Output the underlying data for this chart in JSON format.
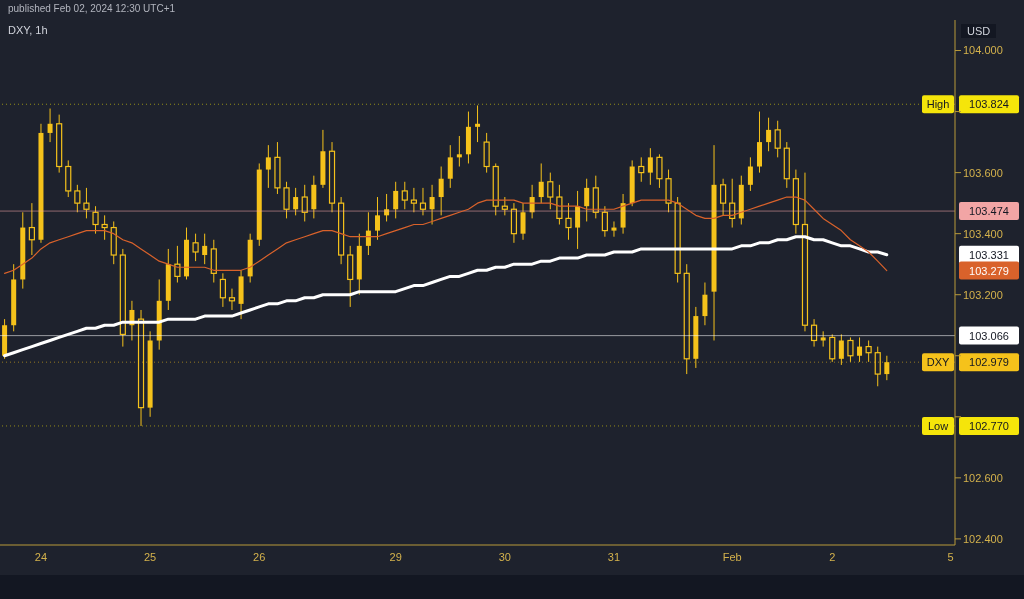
{
  "chart_data": {
    "type": "candlestick",
    "title": "DXY, 1h",
    "subtitle": "published Feb 02, 2024 12:30 UTC+1",
    "ylabel": "USD",
    "categories": [
      null,
      null,
      null,
      null,
      "24",
      null,
      null,
      null,
      null,
      null,
      null,
      null,
      null,
      null,
      null,
      null,
      "25",
      null,
      null,
      null,
      null,
      null,
      null,
      null,
      null,
      null,
      null,
      null,
      "26",
      null,
      null,
      null,
      null,
      null,
      null,
      null,
      null,
      null,
      null,
      null,
      null,
      null,
      null,
      "29",
      null,
      null,
      null,
      null,
      null,
      null,
      null,
      null,
      null,
      null,
      null,
      "30",
      null,
      null,
      null,
      null,
      null,
      null,
      null,
      null,
      null,
      null,
      null,
      "31",
      null,
      null,
      null,
      null,
      null,
      null,
      null,
      null,
      null,
      null,
      null,
      null,
      "Feb",
      null,
      null,
      null,
      null,
      null,
      null,
      null,
      null,
      null,
      null,
      "2",
      null,
      null,
      null,
      null,
      null,
      null,
      null,
      null,
      null,
      null,
      null,
      null,
      "5"
    ],
    "color": "#f5c21b",
    "ohlc": [
      [
        103.0,
        103.12,
        102.99,
        103.1
      ],
      [
        103.1,
        103.3,
        103.08,
        103.25
      ],
      [
        103.25,
        103.47,
        103.22,
        103.42
      ],
      [
        103.42,
        103.5,
        103.33,
        103.38
      ],
      [
        103.38,
        103.76,
        103.37,
        103.73
      ],
      [
        103.73,
        103.81,
        103.7,
        103.76
      ],
      [
        103.76,
        103.79,
        103.6,
        103.62
      ],
      [
        103.62,
        103.64,
        103.52,
        103.54
      ],
      [
        103.54,
        103.56,
        103.47,
        103.5
      ],
      [
        103.5,
        103.55,
        103.45,
        103.48
      ],
      [
        103.47,
        103.49,
        103.4,
        103.43
      ],
      [
        103.43,
        103.46,
        103.38,
        103.42
      ],
      [
        103.42,
        103.44,
        103.3,
        103.33
      ],
      [
        103.33,
        103.35,
        103.03,
        103.07
      ],
      [
        103.1,
        103.18,
        103.05,
        103.15
      ],
      [
        103.12,
        103.15,
        102.77,
        102.83
      ],
      [
        102.83,
        103.08,
        102.8,
        103.05
      ],
      [
        103.05,
        103.25,
        103.02,
        103.18
      ],
      [
        103.18,
        103.35,
        103.15,
        103.3
      ],
      [
        103.3,
        103.36,
        103.24,
        103.26
      ],
      [
        103.26,
        103.42,
        103.25,
        103.38
      ],
      [
        103.37,
        103.4,
        103.31,
        103.34
      ],
      [
        103.33,
        103.4,
        103.3,
        103.36
      ],
      [
        103.35,
        103.38,
        103.24,
        103.27
      ],
      [
        103.25,
        103.27,
        103.16,
        103.19
      ],
      [
        103.19,
        103.22,
        103.15,
        103.18
      ],
      [
        103.17,
        103.28,
        103.12,
        103.26
      ],
      [
        103.26,
        103.4,
        103.24,
        103.38
      ],
      [
        103.38,
        103.63,
        103.36,
        103.61
      ],
      [
        103.61,
        103.69,
        103.55,
        103.65
      ],
      [
        103.65,
        103.7,
        103.53,
        103.55
      ],
      [
        103.55,
        103.57,
        103.45,
        103.48
      ],
      [
        103.48,
        103.55,
        103.46,
        103.52
      ],
      [
        103.52,
        103.56,
        103.44,
        103.47
      ],
      [
        103.48,
        103.59,
        103.45,
        103.56
      ],
      [
        103.56,
        103.74,
        103.55,
        103.67
      ],
      [
        103.67,
        103.7,
        103.47,
        103.5
      ],
      [
        103.5,
        103.52,
        103.3,
        103.33
      ],
      [
        103.33,
        103.36,
        103.16,
        103.25
      ],
      [
        103.25,
        103.4,
        103.2,
        103.36
      ],
      [
        103.36,
        103.47,
        103.33,
        103.41
      ],
      [
        103.41,
        103.52,
        103.38,
        103.46
      ],
      [
        103.46,
        103.53,
        103.44,
        103.48
      ],
      [
        103.48,
        103.57,
        103.45,
        103.54
      ],
      [
        103.54,
        103.57,
        103.48,
        103.51
      ],
      [
        103.51,
        103.55,
        103.47,
        103.5
      ],
      [
        103.5,
        103.55,
        103.46,
        103.48
      ],
      [
        103.48,
        103.56,
        103.43,
        103.52
      ],
      [
        103.52,
        103.62,
        103.46,
        103.58
      ],
      [
        103.58,
        103.69,
        103.55,
        103.65
      ],
      [
        103.65,
        103.72,
        103.62,
        103.66
      ],
      [
        103.66,
        103.8,
        103.63,
        103.75
      ],
      [
        103.75,
        103.82,
        103.7,
        103.76
      ],
      [
        103.7,
        103.73,
        103.6,
        103.62
      ],
      [
        103.62,
        103.63,
        103.46,
        103.49
      ],
      [
        103.49,
        103.52,
        103.46,
        103.48
      ],
      [
        103.48,
        103.5,
        103.37,
        103.4
      ],
      [
        103.4,
        103.5,
        103.38,
        103.47
      ],
      [
        103.47,
        103.56,
        103.45,
        103.52
      ],
      [
        103.52,
        103.63,
        103.5,
        103.57
      ],
      [
        103.57,
        103.6,
        103.48,
        103.52
      ],
      [
        103.52,
        103.56,
        103.43,
        103.45
      ],
      [
        103.45,
        103.5,
        103.38,
        103.42
      ],
      [
        103.42,
        103.54,
        103.35,
        103.49
      ],
      [
        103.49,
        103.58,
        103.44,
        103.55
      ],
      [
        103.55,
        103.59,
        103.45,
        103.47
      ],
      [
        103.47,
        103.49,
        103.39,
        103.41
      ],
      [
        103.41,
        103.44,
        103.39,
        103.42
      ],
      [
        103.42,
        103.53,
        103.4,
        103.5
      ],
      [
        103.5,
        103.64,
        103.49,
        103.62
      ],
      [
        103.62,
        103.65,
        103.57,
        103.6
      ],
      [
        103.6,
        103.68,
        103.56,
        103.65
      ],
      [
        103.65,
        103.66,
        103.55,
        103.58
      ],
      [
        103.58,
        103.61,
        103.47,
        103.5
      ],
      [
        103.5,
        103.52,
        103.24,
        103.27
      ],
      [
        103.27,
        103.3,
        102.94,
        102.99
      ],
      [
        102.99,
        103.16,
        102.96,
        103.13
      ],
      [
        103.13,
        103.24,
        103.1,
        103.2
      ],
      [
        103.21,
        103.69,
        103.05,
        103.56
      ],
      [
        103.56,
        103.58,
        103.46,
        103.5
      ],
      [
        103.5,
        103.58,
        103.42,
        103.45
      ],
      [
        103.45,
        103.59,
        103.43,
        103.56
      ],
      [
        103.56,
        103.65,
        103.54,
        103.62
      ],
      [
        103.62,
        103.8,
        103.6,
        103.7
      ],
      [
        103.7,
        103.78,
        103.67,
        103.74
      ],
      [
        103.74,
        103.77,
        103.65,
        103.68
      ],
      [
        103.68,
        103.7,
        103.55,
        103.58
      ],
      [
        103.58,
        103.61,
        103.4,
        103.43
      ],
      [
        103.43,
        103.6,
        103.08,
        103.1
      ],
      [
        103.1,
        103.12,
        103.03,
        103.05
      ],
      [
        103.05,
        103.08,
        103.03,
        103.06
      ],
      [
        103.06,
        103.07,
        102.98,
        102.99
      ],
      [
        102.99,
        103.07,
        102.97,
        103.05
      ],
      [
        103.05,
        103.06,
        102.98,
        103.0
      ],
      [
        103.0,
        103.06,
        102.98,
        103.03
      ],
      [
        103.03,
        103.05,
        102.98,
        103.01
      ],
      [
        103.01,
        103.03,
        102.9,
        102.94
      ],
      [
        102.94,
        103.0,
        102.92,
        102.979
      ],
      null,
      null,
      null,
      null,
      null,
      null,
      null
    ],
    "series": [
      {
        "type": "line",
        "color": "#ffffff",
        "values": [
          103.0,
          103.01,
          103.02,
          103.03,
          103.04,
          103.05,
          103.06,
          103.07,
          103.08,
          103.09,
          103.09,
          103.1,
          103.1,
          103.11,
          103.11,
          103.11,
          103.11,
          103.11,
          103.12,
          103.12,
          103.12,
          103.12,
          103.13,
          103.13,
          103.13,
          103.13,
          103.14,
          103.15,
          103.16,
          103.17,
          103.17,
          103.18,
          103.18,
          103.19,
          103.19,
          103.2,
          103.2,
          103.2,
          103.2,
          103.21,
          103.21,
          103.21,
          103.21,
          103.21,
          103.22,
          103.23,
          103.23,
          103.24,
          103.25,
          103.26,
          103.26,
          103.27,
          103.28,
          103.28,
          103.29,
          103.29,
          103.3,
          103.3,
          103.3,
          103.31,
          103.31,
          103.32,
          103.32,
          103.32,
          103.33,
          103.33,
          103.33,
          103.34,
          103.34,
          103.34,
          103.35,
          103.35,
          103.35,
          103.35,
          103.35,
          103.35,
          103.35,
          103.35,
          103.35,
          103.35,
          103.35,
          103.36,
          103.36,
          103.37,
          103.37,
          103.38,
          103.38,
          103.39,
          103.39,
          103.38,
          103.38,
          103.37,
          103.36,
          103.36,
          103.35,
          103.34,
          103.34,
          103.331,
          null,
          null,
          null,
          null,
          null,
          null,
          null
        ]
      },
      {
        "type": "line",
        "color": "#d9622b",
        "values": [
          103.27,
          103.28,
          103.3,
          103.32,
          103.35,
          103.37,
          103.38,
          103.39,
          103.4,
          103.41,
          103.41,
          103.41,
          103.4,
          103.38,
          103.37,
          103.35,
          103.33,
          103.31,
          103.3,
          103.29,
          103.29,
          103.29,
          103.29,
          103.28,
          103.28,
          103.28,
          103.28,
          103.29,
          103.31,
          103.33,
          103.35,
          103.37,
          103.38,
          103.39,
          103.4,
          103.41,
          103.41,
          103.4,
          103.39,
          103.39,
          103.39,
          103.39,
          103.4,
          103.41,
          103.42,
          103.43,
          103.43,
          103.44,
          103.45,
          103.46,
          103.47,
          103.48,
          103.5,
          103.51,
          103.51,
          103.51,
          103.51,
          103.5,
          103.5,
          103.5,
          103.5,
          103.49,
          103.49,
          103.49,
          103.48,
          103.48,
          103.48,
          103.48,
          103.49,
          103.5,
          103.51,
          103.51,
          103.51,
          103.51,
          103.5,
          103.48,
          103.46,
          103.45,
          103.45,
          103.46,
          103.46,
          103.47,
          103.48,
          103.49,
          103.5,
          103.51,
          103.52,
          103.52,
          103.51,
          103.48,
          103.45,
          103.43,
          103.41,
          103.38,
          103.36,
          103.34,
          103.31,
          103.279,
          null,
          null,
          null,
          null,
          null,
          null,
          null
        ]
      }
    ],
    "marker": "none",
    "line_style": "solid",
    "annotations": [
      "103.824",
      "102.770",
      "102.979",
      "103.474",
      "103.066",
      "103.331",
      "103.279"
    ],
    "ylim": [
      102.38,
      104.1
    ],
    "yticks": [
      {
        "value": 102.4,
        "label": "102.400"
      },
      {
        "value": 102.6,
        "label": "102.600"
      },
      {
        "value": 102.8,
        "label": null
      },
      {
        "value": 103.0,
        "label": null
      },
      {
        "value": 103.2,
        "label": "103.200"
      },
      {
        "value": 103.4,
        "label": "103.400"
      },
      {
        "value": 103.6,
        "label": "103.600"
      },
      {
        "value": 103.8,
        "label": null
      },
      {
        "value": 104.0,
        "label": "104.000"
      }
    ],
    "ref_lines": [
      {
        "axis": "y",
        "value": 103.824,
        "label": "High",
        "color": "#f5e50a",
        "line_style": "dotted"
      },
      {
        "axis": "y",
        "value": 102.77,
        "label": "Low",
        "color": "#f5e50a",
        "line_style": "dotted"
      },
      {
        "axis": "y",
        "value": 102.979,
        "label": "DXY",
        "color": "#f5c21b",
        "line_style": "dotted"
      },
      {
        "axis": "y",
        "value": 103.474,
        "label": null,
        "color": "#f2a5a5",
        "line_style": "solid"
      },
      {
        "axis": "y",
        "value": 103.066,
        "label": null,
        "color": "#ffffff",
        "line_style": "solid"
      }
    ]
  }
}
